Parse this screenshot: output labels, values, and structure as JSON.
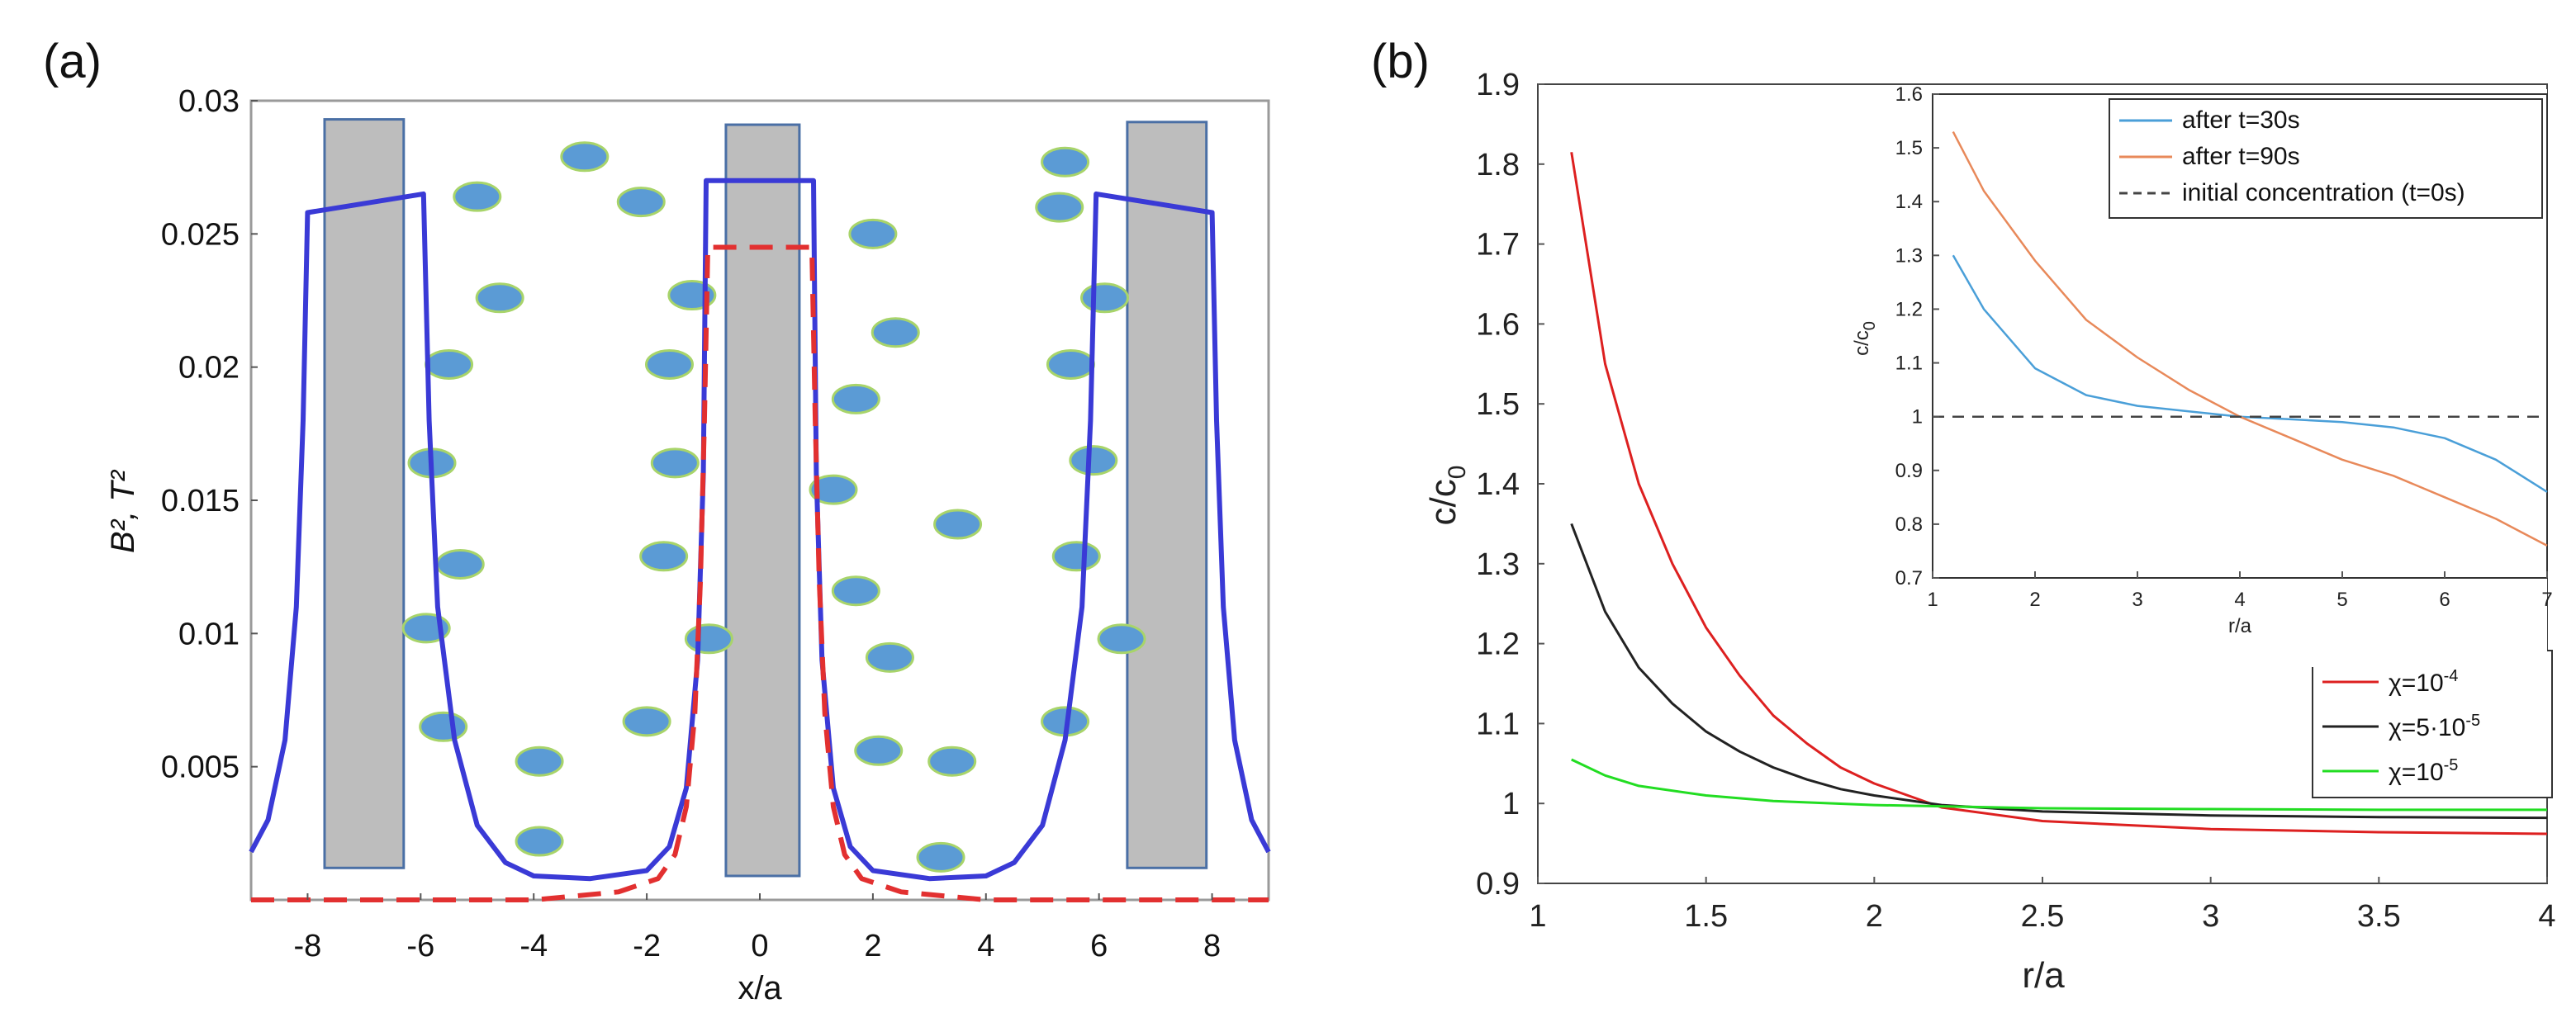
{
  "chart_data": [
    {
      "panel": "(a)",
      "type": "line",
      "xlabel": "x/a",
      "ylabel": "B², T²",
      "xlim": [
        -9,
        9
      ],
      "ylim": [
        0,
        0.03
      ],
      "xticks": [
        "-8",
        "-6",
        "-4",
        "-2",
        "0",
        "2",
        "4",
        "6",
        "8"
      ],
      "yticks": [
        "0.005",
        "0.01",
        "0.015",
        "0.02",
        "0.025",
        "0.03"
      ],
      "series": [
        {
          "name": "B²",
          "color": "#3a3ad6",
          "style": "solid",
          "points": [
            [
              -9,
              0.0018
            ],
            [
              -8.7,
              0.003
            ],
            [
              -8.4,
              0.006
            ],
            [
              -8.2,
              0.011
            ],
            [
              -8.08,
              0.018
            ],
            [
              -8.0,
              0.0258
            ],
            [
              -5.95,
              0.0265
            ],
            [
              -5.85,
              0.018
            ],
            [
              -5.7,
              0.011
            ],
            [
              -5.4,
              0.006
            ],
            [
              -5.0,
              0.0028
            ],
            [
              -4.5,
              0.0014
            ],
            [
              -4.0,
              0.0009
            ],
            [
              -3.0,
              0.0008
            ],
            [
              -2.0,
              0.0011
            ],
            [
              -1.6,
              0.002
            ],
            [
              -1.3,
              0.0042
            ],
            [
              -1.1,
              0.009
            ],
            [
              -1.0,
              0.016
            ],
            [
              -0.95,
              0.027
            ],
            [
              0.95,
              0.027
            ],
            [
              1.0,
              0.016
            ],
            [
              1.1,
              0.009
            ],
            [
              1.3,
              0.0042
            ],
            [
              1.6,
              0.002
            ],
            [
              2.0,
              0.0011
            ],
            [
              3.0,
              0.0008
            ],
            [
              4.0,
              0.0009
            ],
            [
              4.5,
              0.0014
            ],
            [
              5.0,
              0.0028
            ],
            [
              5.4,
              0.006
            ],
            [
              5.7,
              0.011
            ],
            [
              5.85,
              0.018
            ],
            [
              5.95,
              0.0265
            ],
            [
              8.0,
              0.0258
            ],
            [
              8.08,
              0.018
            ],
            [
              8.2,
              0.011
            ],
            [
              8.4,
              0.006
            ],
            [
              8.7,
              0.003
            ],
            [
              9,
              0.0018
            ]
          ]
        },
        {
          "name": "T²",
          "color": "#e23030",
          "style": "dashed",
          "points": [
            [
              -9,
              0.0
            ],
            [
              -4.0,
              0.0
            ],
            [
              -2.5,
              0.0003
            ],
            [
              -1.8,
              0.0008
            ],
            [
              -1.5,
              0.0017
            ],
            [
              -1.3,
              0.0035
            ],
            [
              -1.15,
              0.007
            ],
            [
              -1.05,
              0.012
            ],
            [
              -0.98,
              0.018
            ],
            [
              -0.92,
              0.0245
            ],
            [
              0.92,
              0.0245
            ],
            [
              0.98,
              0.018
            ],
            [
              1.05,
              0.012
            ],
            [
              1.15,
              0.007
            ],
            [
              1.3,
              0.0035
            ],
            [
              1.5,
              0.0017
            ],
            [
              1.8,
              0.0008
            ],
            [
              2.5,
              0.0003
            ],
            [
              4.0,
              0.0
            ],
            [
              9,
              0.0
            ]
          ]
        }
      ],
      "rectangles": [
        {
          "x0": -7.7,
          "x1": -6.3,
          "y0": 0.0012,
          "y1": 0.0293
        },
        {
          "x0": -0.6,
          "x1": 0.7,
          "y0": 0.0009,
          "y1": 0.0291
        },
        {
          "x0": 6.5,
          "x1": 7.9,
          "y0": 0.0012,
          "y1": 0.0292
        }
      ],
      "particles": [
        [
          -3.1,
          0.0279
        ],
        [
          -5.0,
          0.0264
        ],
        [
          -2.1,
          0.0262
        ],
        [
          -4.6,
          0.0226
        ],
        [
          -5.5,
          0.0201
        ],
        [
          -1.6,
          0.0201
        ],
        [
          -1.2,
          0.0227
        ],
        [
          -5.8,
          0.0164
        ],
        [
          -1.5,
          0.0164
        ],
        [
          -5.3,
          0.0126
        ],
        [
          -1.7,
          0.0129
        ],
        [
          -5.9,
          0.0102
        ],
        [
          -0.9,
          0.0098
        ],
        [
          -5.6,
          0.0065
        ],
        [
          -3.9,
          0.0052
        ],
        [
          -2.0,
          0.0067
        ],
        [
          -3.9,
          0.0022
        ],
        [
          2.0,
          0.025
        ],
        [
          2.4,
          0.0213
        ],
        [
          1.7,
          0.0188
        ],
        [
          1.3,
          0.0154
        ],
        [
          3.5,
          0.0141
        ],
        [
          1.7,
          0.0116
        ],
        [
          2.3,
          0.0091
        ],
        [
          2.1,
          0.0056
        ],
        [
          3.4,
          0.0052
        ],
        [
          3.2,
          0.0016
        ],
        [
          5.4,
          0.0277
        ],
        [
          5.3,
          0.026
        ],
        [
          6.1,
          0.0226
        ],
        [
          5.5,
          0.0201
        ],
        [
          5.9,
          0.0165
        ],
        [
          5.6,
          0.0129
        ],
        [
          6.4,
          0.0098
        ],
        [
          5.4,
          0.0067
        ]
      ]
    },
    {
      "panel": "(b)",
      "type": "line",
      "xlabel": "r/a",
      "ylabel": "c/c",
      "ylabel_sub": "0",
      "xlim": [
        1,
        4
      ],
      "ylim": [
        0.9,
        1.9
      ],
      "xticks": [
        "1",
        "1.5",
        "2",
        "2.5",
        "3",
        "3.5",
        "4"
      ],
      "yticks": [
        "0.9",
        "1",
        "1.1",
        "1.2",
        "1.3",
        "1.4",
        "1.5",
        "1.6",
        "1.7",
        "1.8",
        "1.9"
      ],
      "legend_position": "bottom-right",
      "series": [
        {
          "name": "χ=10",
          "exp": "-4",
          "color": "#dd2020",
          "points": [
            [
              1.1,
              1.815
            ],
            [
              1.2,
              1.55
            ],
            [
              1.3,
              1.4
            ],
            [
              1.4,
              1.3
            ],
            [
              1.5,
              1.22
            ],
            [
              1.6,
              1.16
            ],
            [
              1.7,
              1.11
            ],
            [
              1.8,
              1.075
            ],
            [
              1.9,
              1.045
            ],
            [
              2.0,
              1.025
            ],
            [
              2.2,
              0.995
            ],
            [
              2.5,
              0.978
            ],
            [
              3.0,
              0.968
            ],
            [
              3.5,
              0.964
            ],
            [
              4.0,
              0.962
            ]
          ]
        },
        {
          "name": "χ=5·10",
          "exp": "-5",
          "color": "#222222",
          "points": [
            [
              1.1,
              1.35
            ],
            [
              1.2,
              1.24
            ],
            [
              1.3,
              1.17
            ],
            [
              1.4,
              1.125
            ],
            [
              1.5,
              1.09
            ],
            [
              1.6,
              1.065
            ],
            [
              1.7,
              1.045
            ],
            [
              1.8,
              1.03
            ],
            [
              1.9,
              1.018
            ],
            [
              2.0,
              1.01
            ],
            [
              2.2,
              0.998
            ],
            [
              2.5,
              0.99
            ],
            [
              3.0,
              0.985
            ],
            [
              3.5,
              0.983
            ],
            [
              4.0,
              0.982
            ]
          ]
        },
        {
          "name": "χ=10",
          "exp": "-5",
          "color": "#22dd22",
          "points": [
            [
              1.1,
              1.055
            ],
            [
              1.2,
              1.035
            ],
            [
              1.3,
              1.022
            ],
            [
              1.5,
              1.01
            ],
            [
              1.7,
              1.003
            ],
            [
              2.0,
              0.998
            ],
            [
              2.5,
              0.994
            ],
            [
              3.0,
              0.993
            ],
            [
              3.5,
              0.992
            ],
            [
              4.0,
              0.992
            ]
          ]
        }
      ]
    },
    {
      "panel": "(b) inset",
      "type": "line",
      "xlabel": "r/a",
      "ylabel": "c/c",
      "ylabel_sub": "0",
      "xlim": [
        1,
        7
      ],
      "ylim": [
        0.7,
        1.6
      ],
      "xticks": [
        "1",
        "2",
        "3",
        "4",
        "5",
        "6",
        "7"
      ],
      "yticks": [
        "0.7",
        "0.8",
        "0.9",
        "1",
        "1.1",
        "1.2",
        "1.3",
        "1.4",
        "1.5",
        "1.6"
      ],
      "legend_position": "top-right",
      "series": [
        {
          "name": "after t=30s",
          "color": "#4a9fd8",
          "style": "solid",
          "points": [
            [
              1.2,
              1.3
            ],
            [
              1.5,
              1.2
            ],
            [
              2.0,
              1.09
            ],
            [
              2.5,
              1.04
            ],
            [
              3.0,
              1.02
            ],
            [
              3.5,
              1.01
            ],
            [
              4.0,
              1.0
            ],
            [
              4.5,
              0.995
            ],
            [
              5.0,
              0.99
            ],
            [
              5.5,
              0.98
            ],
            [
              6.0,
              0.96
            ],
            [
              6.5,
              0.92
            ],
            [
              7.0,
              0.86
            ]
          ]
        },
        {
          "name": "after t=90s",
          "color": "#e8895a",
          "style": "solid",
          "points": [
            [
              1.2,
              1.53
            ],
            [
              1.5,
              1.42
            ],
            [
              2.0,
              1.29
            ],
            [
              2.5,
              1.18
            ],
            [
              3.0,
              1.11
            ],
            [
              3.5,
              1.05
            ],
            [
              4.0,
              1.0
            ],
            [
              4.5,
              0.96
            ],
            [
              5.0,
              0.92
            ],
            [
              5.5,
              0.89
            ],
            [
              6.0,
              0.85
            ],
            [
              6.5,
              0.81
            ],
            [
              7.0,
              0.76
            ]
          ]
        },
        {
          "name": "initial concentration (t=0s)",
          "color": "#444444",
          "style": "dashed",
          "points": [
            [
              1.0,
              1.0
            ],
            [
              7.0,
              1.0
            ]
          ]
        }
      ]
    }
  ]
}
